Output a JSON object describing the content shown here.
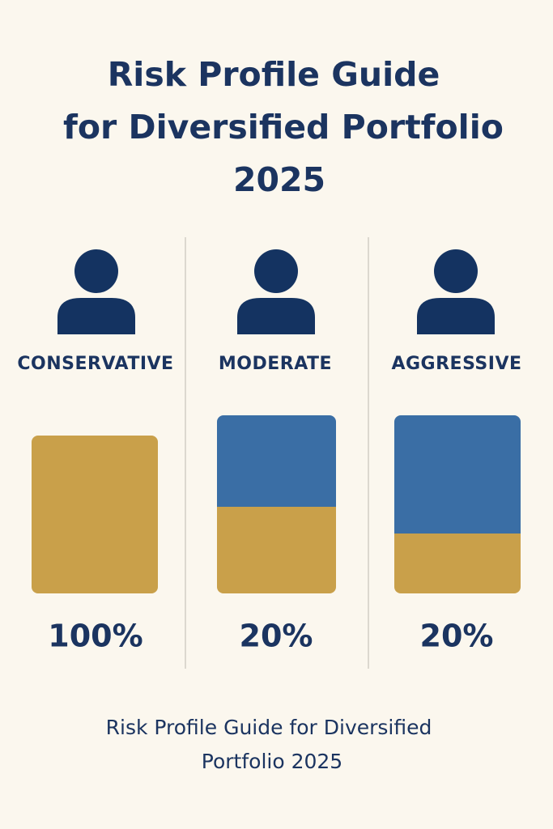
{
  "header": {
    "title_lines": [
      "Risk Profile Guide",
      "for Diversified Portfolio",
      "2025"
    ]
  },
  "profiles": [
    {
      "label": "CONSERVATIVE",
      "percent": "100%"
    },
    {
      "label": "MODERATE",
      "percent": "20%"
    },
    {
      "label": "AGGRESSIVE",
      "percent": "20%"
    }
  ],
  "footer": {
    "lines": [
      "Risk Profile Guide for Diversified",
      "Portfolio 2025"
    ]
  }
}
